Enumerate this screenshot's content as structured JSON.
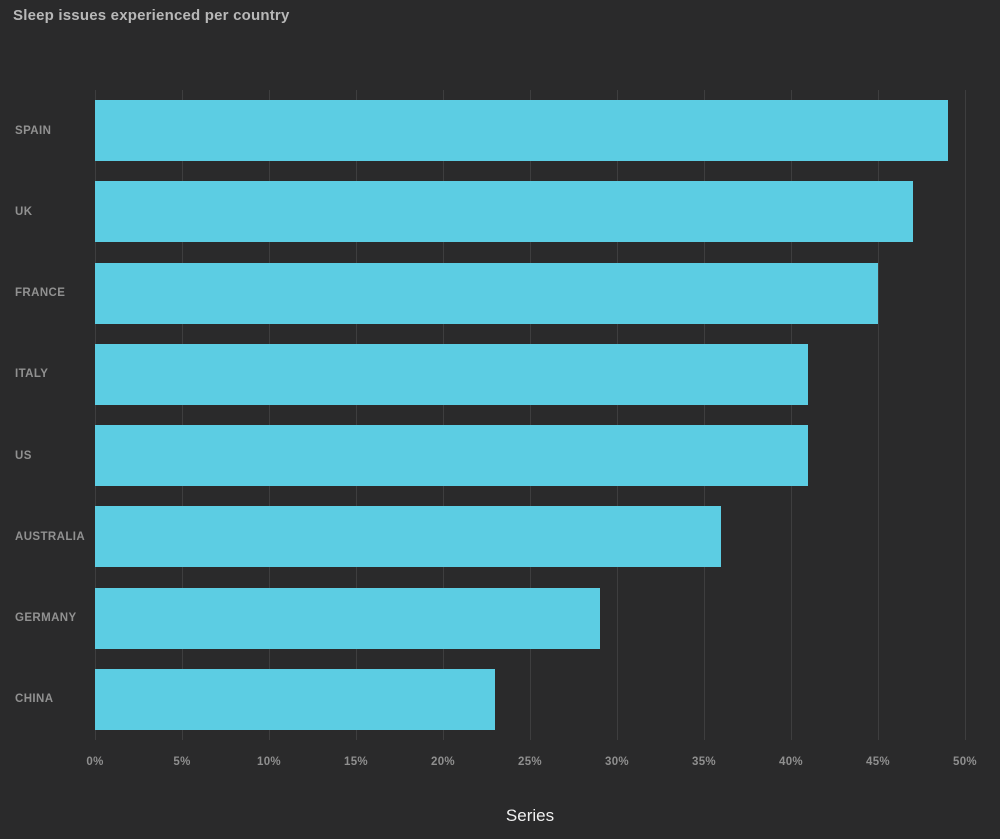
{
  "chart_data": {
    "type": "bar",
    "orientation": "horizontal",
    "title": "Sleep issues experienced per country",
    "categories": [
      "SPAIN",
      "UK",
      "FRANCE",
      "ITALY",
      "US",
      "AUSTRALIA",
      "GERMANY",
      "CHINA"
    ],
    "values": [
      49,
      47,
      45,
      41,
      41,
      36,
      29,
      23
    ],
    "value_suffix": "%",
    "xlabel": "Series",
    "ylabel": "",
    "xlim": [
      0,
      50
    ],
    "tick_step": 5,
    "tick_labels": [
      "0%",
      "5%",
      "10%",
      "15%",
      "20%",
      "25%",
      "30%",
      "35%",
      "40%",
      "45%",
      "50%"
    ],
    "grid": true,
    "legend": false
  },
  "colors": {
    "background": "#2a2a2b",
    "bar": "#5ccde3",
    "gridline": "#3e3e3f",
    "title_text": "#b8b8b8",
    "category_text": "#919191",
    "tick_text": "#8f8f8f",
    "axis_title_text": "#f0f0f0"
  }
}
